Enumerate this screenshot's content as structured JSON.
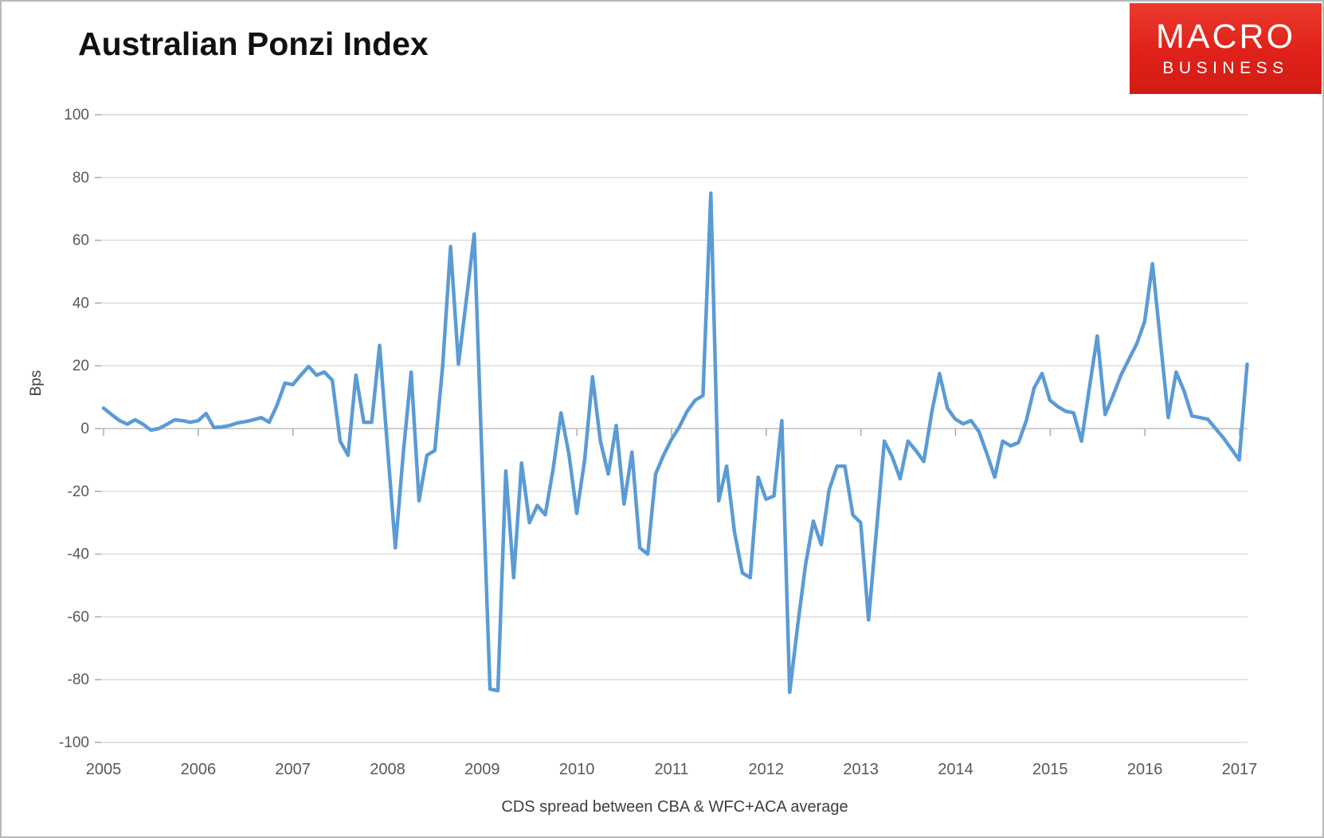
{
  "page": {
    "title": "Australian Ponzi Index"
  },
  "logo": {
    "line1": "MACRO",
    "line2": "BUSINESS",
    "bg_color": "#df211a",
    "text_color": "#ffffff"
  },
  "chart_data": {
    "type": "line",
    "title": "Australian Ponzi Index",
    "xlabel": "CDS spread between CBA & WFC+ACA average",
    "ylabel": "Bps",
    "ylim": [
      -100,
      100
    ],
    "ytick_step": 20,
    "grid": "horizontal-only",
    "legend": "none",
    "line_color": "#5B9BD5",
    "gridline_color": "#d9d9d9",
    "zero_line_color": "#bfbfbf",
    "tick_color": "#a6a6a6",
    "tick_label_color": "#595959",
    "x_tick_labels": [
      "2005",
      "2006",
      "2007",
      "2008",
      "2009",
      "2010",
      "2011",
      "2012",
      "2013",
      "2014",
      "2015",
      "2016",
      "2017"
    ],
    "y_tick_labels": [
      "-100",
      "-80",
      "-60",
      "-40",
      "-20",
      "0",
      "20",
      "40",
      "60",
      "80",
      "100"
    ],
    "x_start": "2005-01",
    "x_end": "2017-02",
    "x_frequency": "monthly",
    "series": [
      {
        "name": "Australian Ponzi Index (CDS spread, Bps)",
        "values": [
          6.5,
          4.5,
          2.6,
          1.4,
          2.8,
          1.4,
          -0.5,
          0,
          1.3,
          2.8,
          2.5,
          2,
          2.5,
          4.8,
          0.3,
          0.5,
          1,
          1.8,
          2.2,
          2.8,
          3.5,
          2,
          7.5,
          14.5,
          14,
          17,
          19.8,
          17,
          18,
          15.4,
          -4,
          -8.5,
          17,
          2,
          2,
          26.5,
          -6,
          -38,
          -8,
          18,
          -23,
          -8.5,
          -7,
          20,
          58,
          20.5,
          41,
          62,
          -11,
          -83,
          -83.5,
          -13.5,
          -47.5,
          -11,
          -30,
          -24.5,
          -27.5,
          -13,
          5,
          -8,
          -27,
          -10,
          16.5,
          -4,
          -14.5,
          1,
          -24,
          -7.5,
          -38,
          -40,
          -14.5,
          -8.5,
          -3.5,
          0.5,
          5.5,
          9,
          10.5,
          75,
          -23,
          -12,
          -33,
          -46,
          -47.5,
          -15.5,
          -22.5,
          -21.5,
          2.5,
          -84,
          -63,
          -43.5,
          -29.5,
          -37,
          -19.5,
          -12,
          -12,
          -27.5,
          -30,
          -61,
          -32.5,
          -4,
          -9,
          -16,
          -4,
          -7,
          -10.5,
          5,
          17.5,
          6.5,
          3,
          1.5,
          2.5,
          -1,
          -8,
          -15.5,
          -4,
          -5.5,
          -4.5,
          2.5,
          13,
          17.5,
          9,
          7,
          5.5,
          5,
          -4,
          13,
          29.5,
          4.5,
          10.5,
          17,
          22,
          27,
          34,
          52.5,
          28,
          3.5,
          18,
          12,
          4,
          3.5,
          3,
          0,
          -3,
          -6.5,
          -10,
          20.5
        ]
      }
    ]
  },
  "layout_note": "single line chart, horizontal gridlines, year tick marks on the zero axis, year labels along bottom"
}
